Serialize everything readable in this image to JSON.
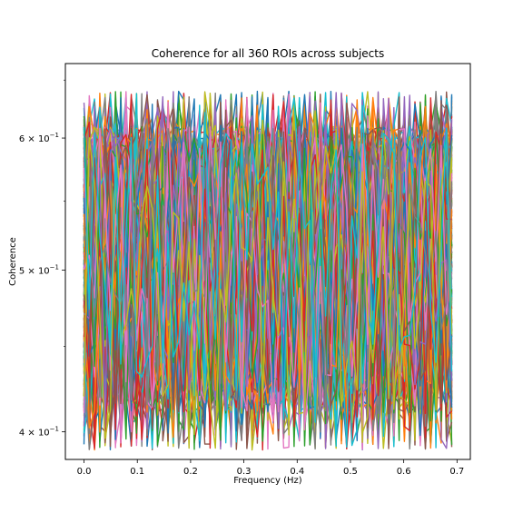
{
  "chart_data": {
    "type": "line",
    "title": "Coherence for all 360 ROIs across subjects",
    "xlabel": "Frequency (Hz)",
    "ylabel": "Coherence",
    "yscale": "log",
    "xlim": [
      -0.035,
      0.725
    ],
    "ylim": [
      0.385,
      0.665
    ],
    "x_ticks": [
      0.0,
      0.1,
      0.2,
      0.3,
      0.4,
      0.5,
      0.6,
      0.7
    ],
    "x_tick_labels": [
      "0.0",
      "0.1",
      "0.2",
      "0.3",
      "0.4",
      "0.5",
      "0.6",
      "0.7"
    ],
    "y_ticks": [
      0.4,
      0.5,
      0.6
    ],
    "y_tick_labels": [
      {
        "mantissa": "4 × 10",
        "exponent": "−1"
      },
      {
        "mantissa": "5 × 10",
        "exponent": "−1"
      },
      {
        "mantissa": "6 × 10",
        "exponent": "−1"
      }
    ],
    "n_series": 360,
    "n_points_per_series": 71,
    "x_range": [
      0.0,
      0.69
    ],
    "typical_y_range": [
      0.41,
      0.61
    ],
    "extreme_y_range": [
      0.39,
      0.64
    ],
    "colors": [
      "#1f77b4",
      "#ff7f0e",
      "#2ca02c",
      "#d62728",
      "#9467bd",
      "#8c564b",
      "#e377c2",
      "#7f7f7f",
      "#bcbd22",
      "#17becf"
    ],
    "grid": false,
    "legend": "none"
  }
}
